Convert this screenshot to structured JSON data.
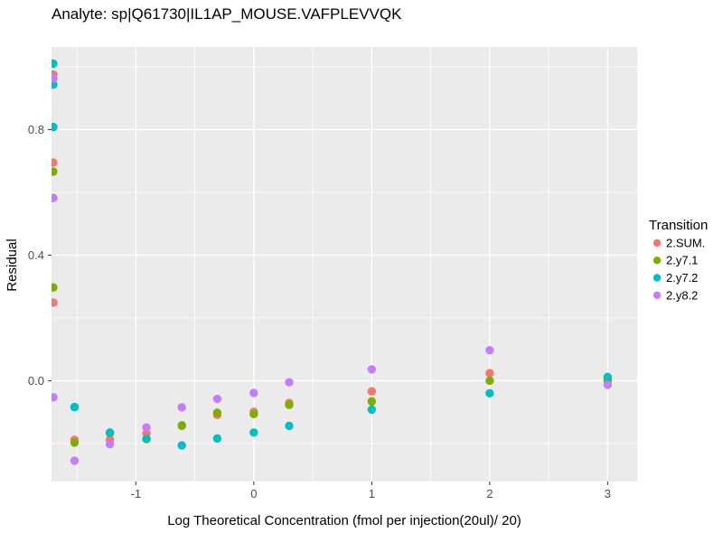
{
  "title": "Analyte: sp|Q61730|IL1AP_MOUSE.VAFPLEVVQK",
  "chart_data": {
    "type": "scatter",
    "title": "Analyte: sp|Q61730|IL1AP_MOUSE.VAFPLEVVQK",
    "xlabel": "Log Theoretical Concentration (fmol per injection(20ul)/ 20)",
    "ylabel": "Residual",
    "xlim": [
      -1.715,
      3.25
    ],
    "ylim": [
      -0.321,
      1.063
    ],
    "grid": true,
    "panel_bg": "#EBEBEB",
    "grid_color": "#FFFFFF",
    "tick_color": "#333333",
    "x_ticks": [
      {
        "value": -1,
        "label": "-1"
      },
      {
        "value": 0,
        "label": "0"
      },
      {
        "value": 1,
        "label": "1"
      },
      {
        "value": 2,
        "label": "2"
      },
      {
        "value": 3,
        "label": "3"
      }
    ],
    "y_ticks": [
      {
        "value": 0.0,
        "label": "0.0"
      },
      {
        "value": 0.4,
        "label": "0.4"
      },
      {
        "value": 0.8,
        "label": "0.8"
      }
    ],
    "x_minor_ticks": [
      -1.5,
      -0.5,
      0.5,
      1.5,
      2.5
    ],
    "y_minor_ticks": [
      -0.2,
      0.2,
      0.6,
      1.0
    ],
    "legend_title": "Transition",
    "legend_position": "right",
    "series": [
      {
        "name": "2.SUM.",
        "color": "#F8766D",
        "points": [
          [
            -1.7,
            0.975
          ],
          [
            -1.7,
            0.695
          ],
          [
            -1.7,
            0.249
          ],
          [
            -1.52,
            -0.188
          ],
          [
            -1.22,
            -0.188
          ],
          [
            -0.91,
            -0.168
          ],
          [
            -0.61,
            -0.144
          ],
          [
            -0.31,
            -0.109
          ],
          [
            0.0,
            -0.099
          ],
          [
            0.3,
            -0.071
          ],
          [
            1.0,
            -0.034
          ],
          [
            2.0,
            0.024
          ],
          [
            3.0,
            0.004
          ]
        ]
      },
      {
        "name": "2.y7.1",
        "color": "#7CAE00",
        "points": [
          [
            -1.7,
            0.666
          ],
          [
            -1.7,
            0.297
          ],
          [
            -1.52,
            -0.197
          ],
          [
            -1.22,
            -0.167
          ],
          [
            -0.91,
            -0.186
          ],
          [
            -0.61,
            -0.142
          ],
          [
            -0.31,
            -0.102
          ],
          [
            0.0,
            -0.106
          ],
          [
            0.3,
            -0.077
          ],
          [
            1.0,
            -0.066
          ],
          [
            2.0,
            0.0
          ],
          [
            3.0,
            0.0
          ]
        ]
      },
      {
        "name": "2.y7.2",
        "color": "#00BFC4",
        "points": [
          [
            -1.7,
            1.01
          ],
          [
            -1.7,
            0.943
          ],
          [
            -1.7,
            0.808
          ],
          [
            -1.52,
            -0.084
          ],
          [
            -1.22,
            -0.165
          ],
          [
            -0.91,
            -0.185
          ],
          [
            -0.61,
            -0.206
          ],
          [
            -0.31,
            -0.184
          ],
          [
            0.0,
            -0.165
          ],
          [
            0.3,
            -0.144
          ],
          [
            1.0,
            -0.092
          ],
          [
            2.0,
            -0.04
          ],
          [
            3.0,
            0.012
          ]
        ]
      },
      {
        "name": "2.y8.2",
        "color": "#C77CFF",
        "points": [
          [
            -1.7,
            0.963
          ],
          [
            -1.7,
            0.582
          ],
          [
            -1.7,
            -0.053
          ],
          [
            -1.52,
            -0.255
          ],
          [
            -1.22,
            -0.202
          ],
          [
            -0.91,
            -0.149
          ],
          [
            -0.61,
            -0.085
          ],
          [
            -0.31,
            -0.058
          ],
          [
            0.0,
            -0.039
          ],
          [
            0.3,
            -0.005
          ],
          [
            1.0,
            0.036
          ],
          [
            2.0,
            0.097
          ],
          [
            3.0,
            -0.013
          ]
        ]
      }
    ]
  }
}
